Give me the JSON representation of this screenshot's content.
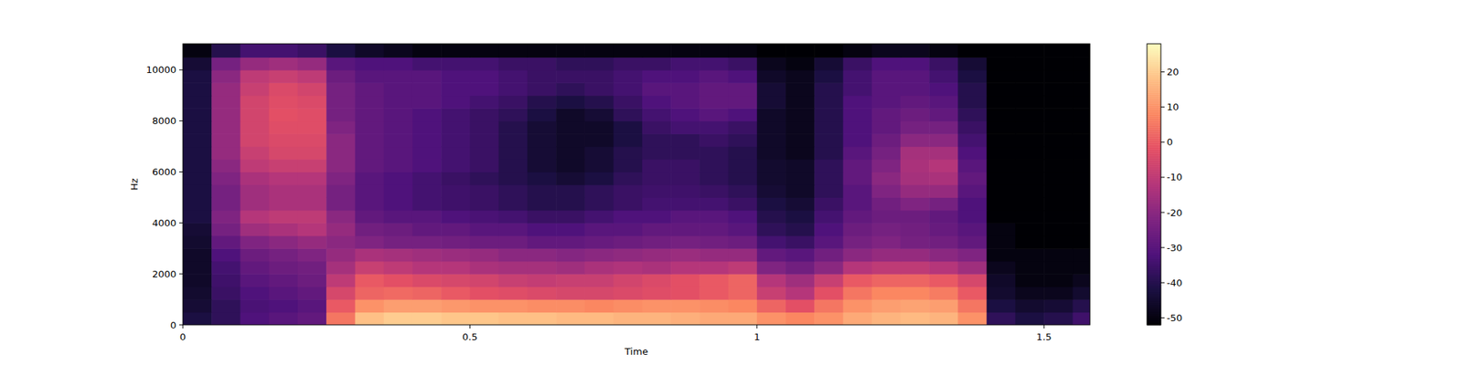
{
  "chart_data": {
    "type": "heatmap",
    "x_label": "Time",
    "y_label": "Hz",
    "xlim": [
      0,
      1.58
    ],
    "ylim": [
      0,
      11025
    ],
    "xticks": [
      0,
      0.5,
      1,
      1.5
    ],
    "yticks": [
      0,
      2000,
      4000,
      6000,
      8000,
      10000
    ],
    "color": "magma",
    "color_range": [
      -52,
      28
    ],
    "color_ticks": [
      -50,
      -40,
      -30,
      -20,
      -10,
      0,
      10,
      20
    ],
    "x_bins": [
      0,
      0.05,
      0.1,
      0.15,
      0.2,
      0.25,
      0.3,
      0.35,
      0.4,
      0.45,
      0.5,
      0.55,
      0.6,
      0.65,
      0.7,
      0.75,
      0.8,
      0.85,
      0.9,
      0.95,
      1.0,
      1.05,
      1.1,
      1.15,
      1.2,
      1.25,
      1.3,
      1.35,
      1.4,
      1.45,
      1.5,
      1.55,
      1.58
    ],
    "y_bins": [
      0,
      500,
      1000,
      1500,
      2000,
      2500,
      3000,
      3500,
      4000,
      4500,
      5000,
      5500,
      6000,
      6500,
      7000,
      7500,
      8000,
      8500,
      9000,
      9500,
      10000,
      10500,
      11025
    ],
    "cells": [
      [
        -42,
        -38,
        -32,
        -30,
        -28,
        5,
        18,
        20,
        20,
        19,
        19,
        18,
        18,
        17,
        17,
        16,
        16,
        15,
        14,
        14,
        10,
        8,
        10,
        14,
        16,
        17,
        16,
        10,
        -38,
        -42,
        -40,
        -35
      ],
      [
        -44,
        -38,
        -33,
        -32,
        -30,
        0,
        10,
        12,
        12,
        11,
        10,
        10,
        9,
        9,
        8,
        9,
        10,
        10,
        9,
        8,
        2,
        -2,
        5,
        10,
        12,
        13,
        12,
        5,
        -42,
        -45,
        -44,
        -40
      ],
      [
        -45,
        -36,
        -32,
        -30,
        -28,
        -5,
        2,
        3,
        2,
        0,
        -2,
        -3,
        -4,
        -5,
        -5,
        -4,
        -3,
        -2,
        0,
        2,
        -8,
        -12,
        -2,
        5,
        8,
        8,
        6,
        0,
        -45,
        -48,
        -48,
        -45
      ],
      [
        -46,
        -35,
        -30,
        -28,
        -26,
        -10,
        0,
        -2,
        -4,
        -5,
        -6,
        -8,
        -9,
        -8,
        -8,
        -6,
        -4,
        -2,
        0,
        2,
        -12,
        -16,
        -8,
        0,
        2,
        2,
        0,
        -5,
        -46,
        -50,
        -50,
        -48
      ],
      [
        -46,
        -34,
        -28,
        -26,
        -25,
        -15,
        -8,
        -10,
        -12,
        -12,
        -14,
        -15,
        -15,
        -16,
        -14,
        -13,
        -14,
        -12,
        -12,
        -10,
        -22,
        -25,
        -20,
        -12,
        -10,
        -10,
        -12,
        -16,
        -48,
        -50,
        -50,
        -50
      ],
      [
        -46,
        -32,
        -26,
        -24,
        -22,
        -18,
        -14,
        -15,
        -16,
        -17,
        -18,
        -20,
        -20,
        -21,
        -20,
        -19,
        -18,
        -17,
        -18,
        -18,
        -28,
        -30,
        -25,
        -20,
        -18,
        -18,
        -20,
        -22,
        -50,
        -50,
        -50,
        -50
      ],
      [
        -45,
        -28,
        -22,
        -20,
        -18,
        -20,
        -22,
        -24,
        -24,
        -25,
        -26,
        -26,
        -28,
        -28,
        -27,
        -26,
        -25,
        -24,
        -25,
        -26,
        -34,
        -36,
        -30,
        -24,
        -22,
        -24,
        -25,
        -28,
        -50,
        -52,
        -52,
        -52
      ],
      [
        -44,
        -24,
        -16,
        -14,
        -12,
        -18,
        -25,
        -26,
        -28,
        -28,
        -30,
        -30,
        -32,
        -32,
        -30,
        -30,
        -28,
        -28,
        -28,
        -30,
        -38,
        -40,
        -32,
        -26,
        -24,
        -25,
        -27,
        -30,
        -50,
        -52,
        -52,
        -52
      ],
      [
        -42,
        -22,
        -12,
        -10,
        -10,
        -20,
        -28,
        -30,
        -30,
        -32,
        -33,
        -34,
        -36,
        -36,
        -34,
        -32,
        -32,
        -30,
        -30,
        -32,
        -40,
        -42,
        -34,
        -28,
        -26,
        -26,
        -28,
        -32,
        -52,
        -52,
        -52,
        -52
      ],
      [
        -42,
        -24,
        -16,
        -14,
        -14,
        -24,
        -30,
        -32,
        -34,
        -35,
        -36,
        -38,
        -40,
        -40,
        -38,
        -36,
        -34,
        -34,
        -34,
        -36,
        -42,
        -44,
        -36,
        -30,
        -25,
        -22,
        -24,
        -32,
        -52,
        -52,
        -52,
        -52
      ],
      [
        -42,
        -24,
        -16,
        -14,
        -14,
        -24,
        -30,
        -32,
        -34,
        -35,
        -36,
        -38,
        -40,
        -40,
        -38,
        -36,
        -35,
        -35,
        -36,
        -38,
        -44,
        -46,
        -38,
        -30,
        -22,
        -18,
        -18,
        -30,
        -52,
        -52,
        -52,
        -52
      ],
      [
        -42,
        -22,
        -14,
        -12,
        -12,
        -22,
        -30,
        -32,
        -34,
        -36,
        -38,
        -40,
        -42,
        -44,
        -42,
        -38,
        -36,
        -36,
        -38,
        -40,
        -45,
        -46,
        -38,
        -28,
        -20,
        -15,
        -14,
        -28,
        -52,
        -52,
        -52,
        -52
      ],
      [
        -42,
        -20,
        -10,
        -8,
        -8,
        -20,
        -28,
        -30,
        -32,
        -34,
        -36,
        -40,
        -44,
        -46,
        -44,
        -40,
        -36,
        -36,
        -38,
        -40,
        -45,
        -46,
        -38,
        -28,
        -22,
        -14,
        -12,
        -30,
        -52,
        -52,
        -52,
        -52
      ],
      [
        -42,
        -18,
        -8,
        -5,
        -5,
        -20,
        -28,
        -30,
        -32,
        -34,
        -36,
        -40,
        -44,
        -46,
        -44,
        -40,
        -38,
        -38,
        -38,
        -40,
        -46,
        -48,
        -40,
        -30,
        -24,
        -15,
        -15,
        -32,
        -52,
        -52,
        -52,
        -52
      ],
      [
        -42,
        -18,
        -6,
        -4,
        -4,
        -20,
        -28,
        -30,
        -32,
        -34,
        -36,
        -40,
        -44,
        -46,
        -46,
        -42,
        -38,
        -38,
        -36,
        -38,
        -46,
        -48,
        -40,
        -32,
        -26,
        -20,
        -20,
        -34,
        -52,
        -52,
        -52,
        -52
      ],
      [
        -42,
        -18,
        -6,
        -3,
        -3,
        -22,
        -28,
        -30,
        -32,
        -34,
        -36,
        -40,
        -44,
        -46,
        -46,
        -42,
        -36,
        -34,
        -34,
        -36,
        -46,
        -48,
        -40,
        -32,
        -28,
        -24,
        -24,
        -36,
        -52,
        -52,
        -52,
        -52
      ],
      [
        -42,
        -18,
        -6,
        -2,
        -3,
        -24,
        -28,
        -30,
        -32,
        -34,
        -36,
        -38,
        -42,
        -46,
        -44,
        -38,
        -34,
        -32,
        -30,
        -32,
        -46,
        -48,
        -40,
        -32,
        -28,
        -26,
        -28,
        -38,
        -52,
        -52,
        -52,
        -52
      ],
      [
        -42,
        -18,
        -6,
        -3,
        -4,
        -24,
        -28,
        -30,
        -30,
        -32,
        -34,
        -36,
        -40,
        -42,
        -40,
        -36,
        -32,
        -30,
        -28,
        -28,
        -44,
        -48,
        -40,
        -32,
        -30,
        -28,
        -30,
        -40,
        -52,
        -52,
        -52,
        -52
      ],
      [
        -42,
        -18,
        -8,
        -4,
        -6,
        -24,
        -28,
        -30,
        -30,
        -32,
        -32,
        -34,
        -36,
        -38,
        -36,
        -34,
        -30,
        -30,
        -28,
        -28,
        -44,
        -48,
        -40,
        -34,
        -30,
        -30,
        -32,
        -40,
        -52,
        -52,
        -52,
        -52
      ],
      [
        -42,
        -20,
        -10,
        -8,
        -10,
        -26,
        -30,
        -30,
        -30,
        -32,
        -32,
        -34,
        -36,
        -36,
        -36,
        -34,
        -32,
        -32,
        -30,
        -32,
        -46,
        -48,
        -42,
        -34,
        -30,
        -30,
        -34,
        -42,
        -52,
        -52,
        -52,
        -52
      ],
      [
        -44,
        -24,
        -18,
        -16,
        -18,
        -30,
        -32,
        -32,
        -34,
        -34,
        -34,
        -36,
        -36,
        -38,
        -38,
        -36,
        -36,
        -34,
        -34,
        -36,
        -48,
        -50,
        -44,
        -36,
        -32,
        -32,
        -36,
        -44,
        -52,
        -52,
        -52,
        -52
      ],
      [
        -50,
        -40,
        -34,
        -34,
        -36,
        -42,
        -46,
        -48,
        -50,
        -50,
        -50,
        -50,
        -50,
        -50,
        -50,
        -50,
        -50,
        -50,
        -50,
        -50,
        -52,
        -52,
        -52,
        -50,
        -48,
        -48,
        -50,
        -52,
        -52,
        -52,
        -52,
        -52
      ]
    ]
  }
}
